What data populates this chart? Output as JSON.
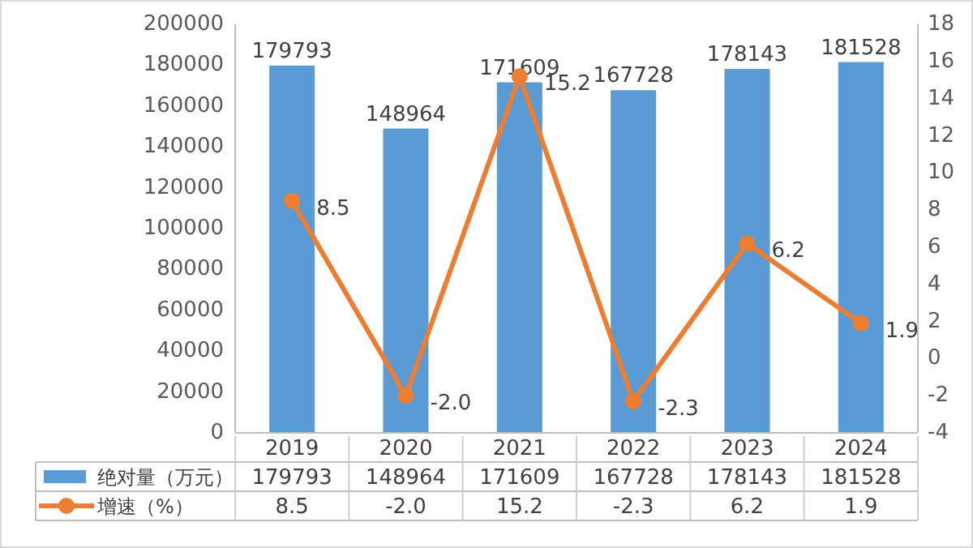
{
  "chart_data": {
    "type": "bar",
    "categories": [
      "2019",
      "2020",
      "2021",
      "2022",
      "2023",
      "2024"
    ],
    "series": [
      {
        "name": "绝对量（万元）",
        "color": "#5b9bd5",
        "values": [
          179793,
          148964,
          171609,
          167728,
          178143,
          181528
        ],
        "value_labels": [
          "179793",
          "148964",
          "171609",
          "167728",
          "178143",
          "181528"
        ]
      },
      {
        "name": "增速（%）",
        "type": "line",
        "axis": "y2",
        "color": "#ed7d31",
        "values": [
          8.5,
          -2.0,
          15.2,
          -2.3,
          6.2,
          1.9
        ],
        "value_labels": [
          "8.5",
          "-2.0",
          "15.2",
          "-2.3",
          "6.2",
          "1.9"
        ]
      }
    ],
    "ylim": [
      0,
      200000
    ],
    "yticks": [
      0,
      20000,
      40000,
      60000,
      80000,
      100000,
      120000,
      140000,
      160000,
      180000,
      200000
    ],
    "y2lim": [
      -4,
      18
    ],
    "y2ticks": [
      -4,
      -2,
      0,
      2,
      4,
      6,
      8,
      10,
      12,
      14,
      16,
      18
    ],
    "data_labels": true,
    "legend": "bottom",
    "marker": "circle"
  }
}
